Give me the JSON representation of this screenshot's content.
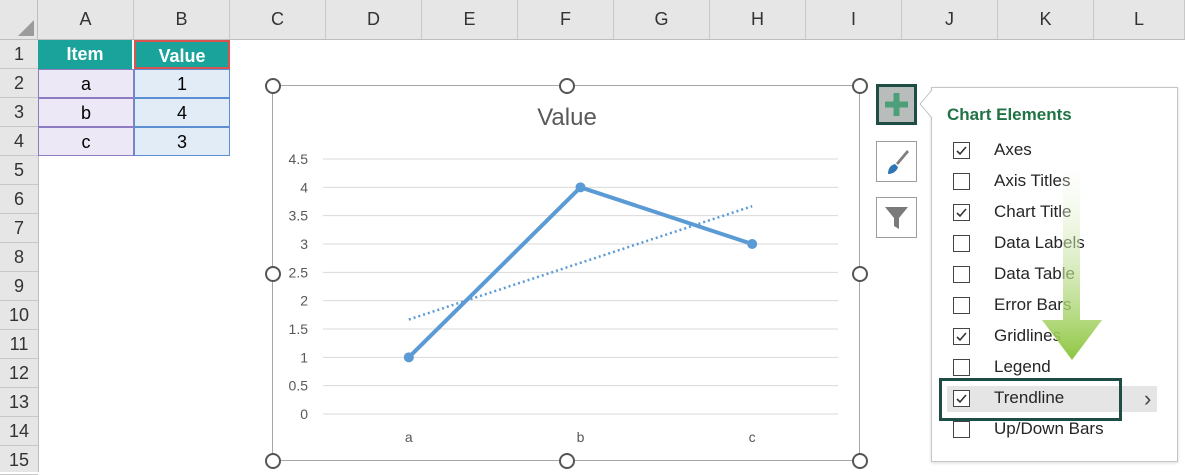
{
  "columns": [
    "A",
    "B",
    "C",
    "D",
    "E",
    "F",
    "G",
    "H",
    "I",
    "J",
    "K",
    "L"
  ],
  "rows": [
    "1",
    "2",
    "3",
    "4",
    "5",
    "6",
    "7",
    "8",
    "9",
    "10",
    "11",
    "12",
    "13",
    "14",
    "15"
  ],
  "table": {
    "headers": [
      "Item",
      "Value"
    ],
    "rows": [
      [
        "a",
        "1"
      ],
      [
        "b",
        "4"
      ],
      [
        "c",
        "3"
      ]
    ]
  },
  "chart_data": {
    "type": "line",
    "title": "Value",
    "categories": [
      "a",
      "b",
      "c"
    ],
    "series": [
      {
        "values": [
          1,
          4,
          3
        ]
      }
    ],
    "trendline": {
      "type": "linear",
      "start": 1.667,
      "end": 3.667
    },
    "ylim": [
      0,
      4.5
    ],
    "yticks": [
      "0",
      "0.5",
      "1",
      "1.5",
      "2",
      "2.5",
      "3",
      "3.5",
      "4",
      "4.5"
    ],
    "grid": true,
    "colors": {
      "series": "#5b9bd5",
      "grid": "#d9d9d9",
      "title": "#595959"
    }
  },
  "side_buttons": {
    "add": "plus-icon",
    "styles": "paintbrush-icon",
    "filter": "filter-icon"
  },
  "panel": {
    "title": "Chart Elements",
    "items": [
      {
        "label": "Axes",
        "checked": true
      },
      {
        "label": "Axis Titles",
        "checked": false
      },
      {
        "label": "Chart Title",
        "checked": true
      },
      {
        "label": "Data Labels",
        "checked": false
      },
      {
        "label": "Data Table",
        "checked": false
      },
      {
        "label": "Error Bars",
        "checked": false
      },
      {
        "label": "Gridlines",
        "checked": true
      },
      {
        "label": "Legend",
        "checked": false
      },
      {
        "label": "Trendline",
        "checked": true
      },
      {
        "label": "Up/Down Bars",
        "checked": false
      }
    ],
    "highlighted": "Trendline",
    "submenu_arrow": "›"
  },
  "accent_colors": {
    "header_fill": "#1aa39a",
    "panel_title": "#217346",
    "arrow": "#8dc63f"
  }
}
